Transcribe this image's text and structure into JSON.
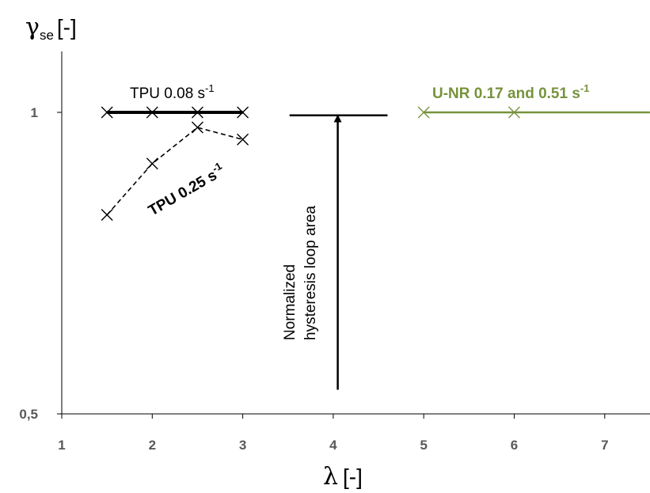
{
  "chart_data": {
    "type": "line",
    "title": "",
    "xlabel": {
      "symbol": "λ",
      "unit": "[-]"
    },
    "ylabel": {
      "symbol": "γ",
      "subscript": "se",
      "unit": "[-]"
    },
    "xlim": [
      1,
      7.5
    ],
    "ylim": [
      0.5,
      1.1
    ],
    "xticks": [
      "1",
      "2",
      "3",
      "4",
      "5",
      "6",
      "7"
    ],
    "yticks": [
      "0,5",
      "1"
    ],
    "grid": false,
    "series": [
      {
        "name": "TPU 0.08 s",
        "sup": "-1",
        "color": "#000000",
        "x": [
          1.5,
          2,
          2.5,
          3
        ],
        "y": [
          1,
          1,
          1,
          1
        ]
      },
      {
        "name": "TPU 0.25 s",
        "sup": "-1",
        "color": "#000000",
        "x": [
          1.5,
          2,
          2.5,
          3
        ],
        "y": [
          0.83,
          0.915,
          0.975,
          0.955
        ]
      },
      {
        "name": "U-NR 0.17 and 0.51 s",
        "sup": "-1",
        "color": "#77933C",
        "x": [
          5,
          6,
          7.5
        ],
        "y": [
          1,
          1,
          1
        ]
      }
    ],
    "annotation": {
      "lines": [
        "Normalized",
        "hysteresis loop area"
      ],
      "arrow_x": 4.05,
      "arrow_y": [
        0.54,
        0.99
      ],
      "cap_x": [
        3.5,
        4.6
      ],
      "cap_y": 0.995
    }
  }
}
